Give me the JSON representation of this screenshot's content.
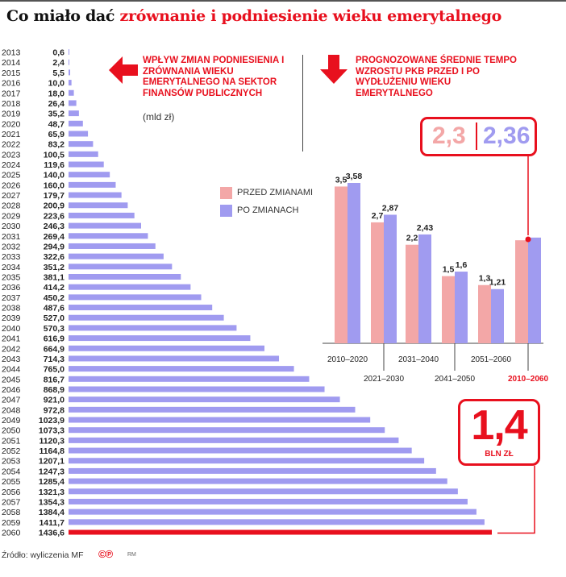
{
  "headline": {
    "part1": "Co miało dać ",
    "part2": "zrównanie i podniesienie wieku emerytalnego"
  },
  "left_panel": {
    "title": "WPŁYW ZMIAN PODNIESIENIA I ZRÓWNANIA WIEKU EMERYTALNEGO NA SEKTOR FINANSÓW PUBLICZNYCH",
    "unit": "(mld zł)",
    "arrow_icon": "arrow-left-icon"
  },
  "right_panel": {
    "title": "PROGNOZOWANE ŚREDNIE TEMPO WZROSTU PKB PRZED I PO WYDŁUŻENIU WIEKU EMERYTALNEGO",
    "arrow_icon": "arrow-down-icon"
  },
  "callout": {
    "before": "2,3",
    "after": "2,36"
  },
  "total": {
    "value": "1,4",
    "unit": "BLN ZŁ"
  },
  "legend": {
    "before": "PRZED ZMIANAMI",
    "after": "PO ZMIANACH"
  },
  "footer": {
    "source": "Źródło: wyliczenia MF",
    "logo": "©℗",
    "author": "RM"
  },
  "colors": {
    "accent_red": "#e8101e",
    "bar_purple": "#a09bf0",
    "bar_pink": "#f3a7a7"
  },
  "chart_data": [
    {
      "type": "bar",
      "orientation": "horizontal",
      "unit": "mld zł",
      "categories": [
        "2013",
        "2014",
        "2015",
        "2016",
        "2017",
        "2018",
        "2019",
        "2020",
        "2021",
        "2022",
        "2023",
        "2024",
        "2025",
        "2026",
        "2027",
        "2028",
        "2029",
        "2030",
        "2031",
        "2032",
        "2033",
        "2034",
        "2035",
        "2036",
        "2037",
        "2038",
        "2039",
        "2040",
        "2041",
        "2042",
        "2043",
        "2044",
        "2045",
        "2046",
        "2047",
        "2048",
        "2049",
        "2050",
        "2051",
        "2052",
        "2053",
        "2054",
        "2055",
        "2056",
        "2057",
        "2058",
        "2059",
        "2060"
      ],
      "values": [
        0.6,
        2.4,
        5.5,
        10.0,
        18.0,
        26.4,
        35.2,
        48.7,
        65.9,
        83.2,
        100.5,
        119.6,
        140.0,
        160.0,
        179.7,
        200.9,
        223.6,
        246.3,
        269.4,
        294.9,
        322.6,
        351.2,
        381.1,
        414.2,
        450.2,
        487.6,
        527.0,
        570.3,
        616.9,
        664.9,
        714.3,
        765.0,
        816.7,
        868.9,
        921.0,
        972.8,
        1023.9,
        1073.3,
        1120.3,
        1164.8,
        1207.1,
        1247.3,
        1285.4,
        1321.3,
        1354.3,
        1384.4,
        1411.7,
        1436.6
      ],
      "labels": [
        "0,6",
        "2,4",
        "5,5",
        "10,0",
        "18,0",
        "26,4",
        "35,2",
        "48,7",
        "65,9",
        "83,2",
        "100,5",
        "119,6",
        "140,0",
        "160,0",
        "179,7",
        "200,9",
        "223,6",
        "246,3",
        "269,4",
        "294,9",
        "322,6",
        "351,2",
        "381,1",
        "414,2",
        "450,2",
        "487,6",
        "527,0",
        "570,3",
        "616,9",
        "664,9",
        "714,3",
        "765,0",
        "816,7",
        "868,9",
        "921,0",
        "972,8",
        "1023,9",
        "1073,3",
        "1120,3",
        "1164,8",
        "1207,1",
        "1247,3",
        "1285,4",
        "1321,3",
        "1354,3",
        "1384,4",
        "1411,7",
        "1436,6"
      ],
      "highlight_last": true
    },
    {
      "type": "bar",
      "orientation": "vertical",
      "categories": [
        "2010–2020",
        "2021–2030",
        "2031–2040",
        "2041–2050",
        "2051–2060",
        "2010–2060"
      ],
      "series": [
        {
          "name": "PRZED ZMIANAMI",
          "values": [
            3.5,
            2.7,
            2.2,
            1.5,
            1.3,
            2.3
          ],
          "labels": [
            "3,5",
            "2,7",
            "2,2",
            "1,5",
            "1,3",
            ""
          ]
        },
        {
          "name": "PO ZMIANACH",
          "values": [
            3.58,
            2.87,
            2.43,
            1.6,
            1.21,
            2.36
          ],
          "labels": [
            "3,58",
            "2,87",
            "2,43",
            "1,6",
            "1,21",
            ""
          ]
        }
      ],
      "ylim": [
        0,
        3.8
      ],
      "grid": false,
      "legend": "top-left"
    }
  ]
}
